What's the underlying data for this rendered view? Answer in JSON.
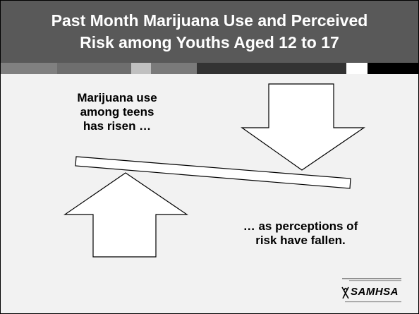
{
  "slide": {
    "title_line1": "Past Month Marijuana Use and Perceived",
    "title_line2": "Risk among Youths Aged 12 to 17",
    "caption_top_line1": "Marijuana use",
    "caption_top_line2": "among teens",
    "caption_top_line3": "has risen …",
    "caption_bottom_line1": "… as perceptions of",
    "caption_bottom_line2": "risk have fallen.",
    "logo_text": "SAMHSA"
  },
  "colors": {
    "title_band": "#595959",
    "background": "#f2f2f2",
    "stripe_segments": [
      "#808080",
      "#6e6e6e",
      "#8c8c8c",
      "#c0c0c0",
      "#7a7a7a",
      "#404040",
      "#ffffff",
      "#000000"
    ]
  },
  "icons": [
    "down-arrow-icon",
    "up-arrow-icon",
    "seesaw-plank",
    "samhsa-logo-mark"
  ]
}
